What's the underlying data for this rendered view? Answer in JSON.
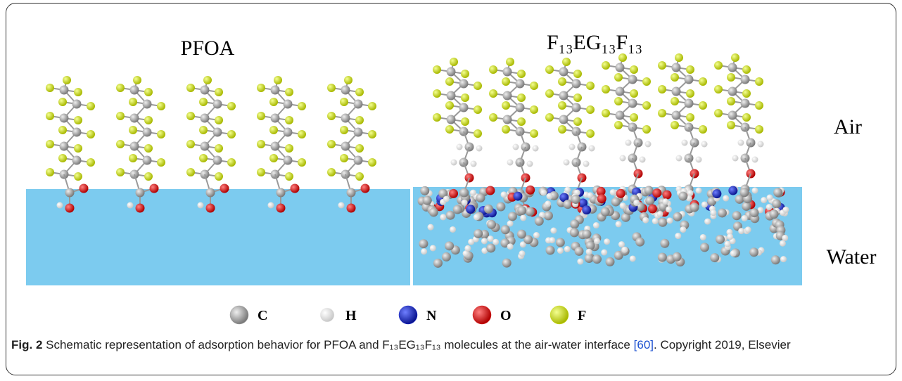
{
  "figure": {
    "panels": [
      {
        "title": "PFOA"
      },
      {
        "title": "F₁₃EG₁₃F₁₃"
      }
    ],
    "phases": {
      "air": "Air",
      "water": "Water"
    },
    "legend": [
      {
        "label": "C",
        "color": "#9a9a9a"
      },
      {
        "label": "H",
        "color": "#f4f4f4"
      },
      {
        "label": "N",
        "color": "#1020d0"
      },
      {
        "label": "O",
        "color": "#e01010"
      },
      {
        "label": "F",
        "color": "#cfe01a"
      }
    ],
    "caption": {
      "label": "Fig. 2",
      "text": "Schematic representation of adsorption behavior for PFOA and F₁₃EG₁₃F₁₃ molecules at the air-water interface",
      "ref": "[60]",
      "tail": ". Copyright 2019, Elsevier"
    }
  }
}
